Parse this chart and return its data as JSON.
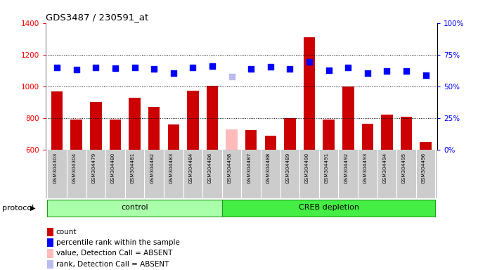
{
  "title": "GDS3487 / 230591_at",
  "samples": [
    "GSM304303",
    "GSM304304",
    "GSM304479",
    "GSM304480",
    "GSM304481",
    "GSM304482",
    "GSM304483",
    "GSM304484",
    "GSM304486",
    "GSM304498",
    "GSM304487",
    "GSM304488",
    "GSM304489",
    "GSM304490",
    "GSM304491",
    "GSM304492",
    "GSM304493",
    "GSM304494",
    "GSM304495",
    "GSM304496"
  ],
  "bar_values": [
    970,
    790,
    900,
    790,
    930,
    870,
    760,
    975,
    1005,
    730,
    725,
    690,
    800,
    1310,
    790,
    1000,
    765,
    820,
    810,
    650
  ],
  "bar_colors": [
    "#cc0000",
    "#cc0000",
    "#cc0000",
    "#cc0000",
    "#cc0000",
    "#cc0000",
    "#cc0000",
    "#cc0000",
    "#cc0000",
    "#ffbbbb",
    "#cc0000",
    "#cc0000",
    "#cc0000",
    "#cc0000",
    "#cc0000",
    "#cc0000",
    "#cc0000",
    "#cc0000",
    "#cc0000",
    "#cc0000"
  ],
  "dot_values": [
    1120,
    1105,
    1120,
    1115,
    1120,
    1110,
    1085,
    1120,
    1130,
    1060,
    1110,
    1125,
    1110,
    1155,
    1100,
    1120,
    1085,
    1095,
    1095,
    1070
  ],
  "dot_colors": [
    "blue",
    "blue",
    "blue",
    "blue",
    "blue",
    "blue",
    "blue",
    "blue",
    "blue",
    "#bbbbee",
    "blue",
    "blue",
    "blue",
    "blue",
    "blue",
    "blue",
    "blue",
    "blue",
    "blue",
    "blue"
  ],
  "control_count": 9,
  "ylim_left": [
    600,
    1400
  ],
  "ylim_right": [
    0,
    100
  ],
  "yticks_left": [
    600,
    800,
    1000,
    1200,
    1400
  ],
  "yticks_right": [
    0,
    25,
    50,
    75,
    100
  ],
  "grid_values": [
    800,
    1000,
    1200
  ],
  "cell_bg": "#cccccc",
  "control_color": "#aaffaa",
  "creb_color": "#44ee44",
  "control_label": "control",
  "creb_label": "CREB depletion",
  "protocol_label": "protocol",
  "legend_items": [
    {
      "label": "count",
      "color": "#cc0000"
    },
    {
      "label": "percentile rank within the sample",
      "color": "blue"
    },
    {
      "label": "value, Detection Call = ABSENT",
      "color": "#ffbbbb"
    },
    {
      "label": "rank, Detection Call = ABSENT",
      "color": "#bbbbee"
    }
  ]
}
